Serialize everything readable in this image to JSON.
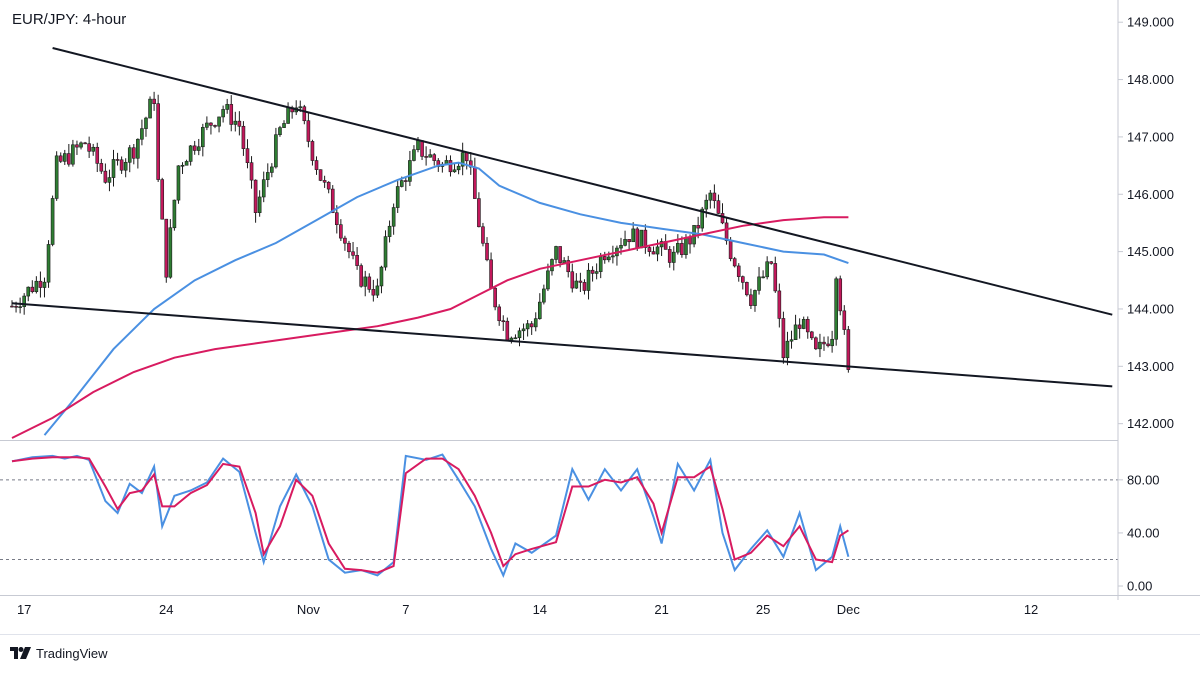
{
  "chart_data": {
    "type": "candlestick",
    "title": "EUR/JPY: 4-hour",
    "price_axis": {
      "range": [
        141.75,
        149.3
      ],
      "ticks": [
        "149.000",
        "148.000",
        "147.000",
        "146.000",
        "145.000",
        "144.000",
        "143.000",
        "142.000"
      ]
    },
    "oscillator_axis": {
      "range": [
        -3,
        107
      ],
      "ticks": [
        "80.00",
        "40.00",
        "0.00"
      ],
      "levels": [
        80,
        20
      ]
    },
    "x_axis": {
      "ticks": [
        {
          "label": "17",
          "bar": 3
        },
        {
          "label": "24",
          "bar": 38
        },
        {
          "label": "Nov",
          "bar": 73
        },
        {
          "label": "7",
          "bar": 97
        },
        {
          "label": "14",
          "bar": 130
        },
        {
          "label": "21",
          "bar": 160
        },
        {
          "label": "25",
          "bar": 185
        },
        {
          "label": "Dec",
          "bar": 206
        },
        {
          "label": "12",
          "bar": 251
        }
      ]
    },
    "price_path": [
      [
        0,
        144.05
      ],
      [
        8,
        144.6
      ],
      [
        11,
        146.5
      ],
      [
        18,
        146.9
      ],
      [
        23,
        146.3
      ],
      [
        30,
        146.8
      ],
      [
        35,
        147.7
      ],
      [
        36,
        146.2
      ],
      [
        38,
        144.7
      ],
      [
        41,
        146.5
      ],
      [
        46,
        147.0
      ],
      [
        52,
        147.5
      ],
      [
        56,
        147.2
      ],
      [
        60,
        145.7
      ],
      [
        66,
        147.1
      ],
      [
        70,
        147.6
      ],
      [
        76,
        146.3
      ],
      [
        80,
        145.6
      ],
      [
        85,
        144.6
      ],
      [
        90,
        144.3
      ],
      [
        94,
        145.9
      ],
      [
        100,
        146.8
      ],
      [
        106,
        146.5
      ],
      [
        112,
        146.7
      ],
      [
        118,
        144.3
      ],
      [
        122,
        143.6
      ],
      [
        128,
        143.7
      ],
      [
        134,
        145.0
      ],
      [
        140,
        144.3
      ],
      [
        146,
        145.0
      ],
      [
        152,
        145.3
      ],
      [
        158,
        145.1
      ],
      [
        163,
        144.9
      ],
      [
        168,
        145.3
      ],
      [
        172,
        146.0
      ],
      [
        177,
        145.0
      ],
      [
        182,
        144.2
      ],
      [
        187,
        144.8
      ],
      [
        190,
        143.2
      ],
      [
        194,
        143.8
      ],
      [
        198,
        143.2
      ],
      [
        202,
        143.6
      ],
      [
        203,
        144.7
      ],
      [
        205,
        143.5
      ],
      [
        206,
        142.85
      ]
    ],
    "indicators": [
      {
        "type": "moving-average",
        "color": "#4a90e2",
        "path": [
          [
            8,
            141.8
          ],
          [
            15,
            142.4
          ],
          [
            25,
            143.3
          ],
          [
            35,
            144.0
          ],
          [
            45,
            144.5
          ],
          [
            55,
            144.85
          ],
          [
            65,
            145.15
          ],
          [
            75,
            145.55
          ],
          [
            85,
            145.95
          ],
          [
            95,
            146.25
          ],
          [
            105,
            146.5
          ],
          [
            110,
            146.55
          ],
          [
            115,
            146.45
          ],
          [
            120,
            146.15
          ],
          [
            130,
            145.85
          ],
          [
            140,
            145.65
          ],
          [
            150,
            145.5
          ],
          [
            160,
            145.4
          ],
          [
            170,
            145.3
          ],
          [
            180,
            145.15
          ],
          [
            190,
            145.0
          ],
          [
            200,
            144.95
          ],
          [
            206,
            144.8
          ]
        ]
      },
      {
        "type": "moving-average",
        "color": "#d81b60",
        "path": [
          [
            0,
            141.75
          ],
          [
            10,
            142.1
          ],
          [
            20,
            142.55
          ],
          [
            30,
            142.9
          ],
          [
            40,
            143.15
          ],
          [
            50,
            143.3
          ],
          [
            60,
            143.4
          ],
          [
            70,
            143.5
          ],
          [
            80,
            143.6
          ],
          [
            90,
            143.7
          ],
          [
            100,
            143.85
          ],
          [
            108,
            144.0
          ],
          [
            115,
            144.25
          ],
          [
            122,
            144.5
          ],
          [
            130,
            144.7
          ],
          [
            140,
            144.85
          ],
          [
            150,
            145.0
          ],
          [
            160,
            145.15
          ],
          [
            170,
            145.3
          ],
          [
            180,
            145.45
          ],
          [
            190,
            145.55
          ],
          [
            200,
            145.6
          ],
          [
            206,
            145.6
          ]
        ]
      }
    ],
    "trendlines": [
      {
        "from": [
          10,
          148.55
        ],
        "to": [
          271,
          143.9
        ],
        "color": "#131722"
      },
      {
        "from": [
          0,
          144.1
        ],
        "to": [
          271,
          142.65
        ],
        "color": "#131722"
      }
    ],
    "oscillator": {
      "series": [
        {
          "color": "#4a90e2",
          "path": [
            [
              0,
              94
            ],
            [
              5,
              97
            ],
            [
              10,
              98
            ],
            [
              13,
              96
            ],
            [
              16,
              98
            ],
            [
              19,
              95
            ],
            [
              23,
              64
            ],
            [
              26,
              55
            ],
            [
              29,
              77
            ],
            [
              32,
              70
            ],
            [
              35,
              90
            ],
            [
              37,
              45
            ],
            [
              40,
              68
            ],
            [
              44,
              72
            ],
            [
              48,
              78
            ],
            [
              52,
              96
            ],
            [
              56,
              86
            ],
            [
              60,
              40
            ],
            [
              62,
              18
            ],
            [
              66,
              60
            ],
            [
              70,
              84
            ],
            [
              74,
              60
            ],
            [
              78,
              20
            ],
            [
              82,
              10
            ],
            [
              86,
              12
            ],
            [
              90,
              8
            ],
            [
              94,
              18
            ],
            [
              97,
              98
            ],
            [
              102,
              95
            ],
            [
              106,
              99
            ],
            [
              110,
              80
            ],
            [
              114,
              60
            ],
            [
              118,
              28
            ],
            [
              121,
              8
            ],
            [
              124,
              32
            ],
            [
              128,
              25
            ],
            [
              134,
              38
            ],
            [
              138,
              88
            ],
            [
              142,
              65
            ],
            [
              146,
              88
            ],
            [
              150,
              72
            ],
            [
              154,
              88
            ],
            [
              158,
              52
            ],
            [
              160,
              32
            ],
            [
              164,
              92
            ],
            [
              168,
              72
            ],
            [
              172,
              95
            ],
            [
              175,
              40
            ],
            [
              178,
              12
            ],
            [
              182,
              28
            ],
            [
              186,
              42
            ],
            [
              190,
              22
            ],
            [
              194,
              55
            ],
            [
              198,
              12
            ],
            [
              202,
              22
            ],
            [
              204,
              45
            ],
            [
              206,
              22
            ]
          ]
        },
        {
          "color": "#d81b60",
          "path": [
            [
              0,
              94
            ],
            [
              5,
              96
            ],
            [
              10,
              97
            ],
            [
              13,
              97
            ],
            [
              16,
              97
            ],
            [
              19,
              96
            ],
            [
              23,
              75
            ],
            [
              26,
              58
            ],
            [
              29,
              70
            ],
            [
              32,
              72
            ],
            [
              35,
              84
            ],
            [
              37,
              60
            ],
            [
              40,
              60
            ],
            [
              44,
              70
            ],
            [
              48,
              76
            ],
            [
              52,
              92
            ],
            [
              56,
              90
            ],
            [
              60,
              55
            ],
            [
              62,
              24
            ],
            [
              66,
              45
            ],
            [
              70,
              80
            ],
            [
              74,
              68
            ],
            [
              78,
              32
            ],
            [
              82,
              13
            ],
            [
              86,
              12
            ],
            [
              90,
              10
            ],
            [
              94,
              15
            ],
            [
              97,
              85
            ],
            [
              102,
              96
            ],
            [
              106,
              96
            ],
            [
              110,
              88
            ],
            [
              114,
              68
            ],
            [
              118,
              40
            ],
            [
              121,
              15
            ],
            [
              124,
              24
            ],
            [
              128,
              28
            ],
            [
              134,
              33
            ],
            [
              138,
              75
            ],
            [
              142,
              75
            ],
            [
              146,
              80
            ],
            [
              150,
              78
            ],
            [
              154,
              82
            ],
            [
              158,
              62
            ],
            [
              160,
              40
            ],
            [
              164,
              82
            ],
            [
              168,
              82
            ],
            [
              172,
              90
            ],
            [
              175,
              58
            ],
            [
              178,
              20
            ],
            [
              182,
              25
            ],
            [
              186,
              38
            ],
            [
              190,
              30
            ],
            [
              194,
              45
            ],
            [
              198,
              20
            ],
            [
              202,
              18
            ],
            [
              204,
              38
            ],
            [
              206,
              42
            ]
          ]
        }
      ]
    },
    "colors": {
      "up": "#2e7d32",
      "down": "#c2185b",
      "grid": "#e0e3eb",
      "axis_border": "#c7cad3",
      "level_line": "#787b86"
    }
  },
  "branding": {
    "name": "TradingView"
  }
}
